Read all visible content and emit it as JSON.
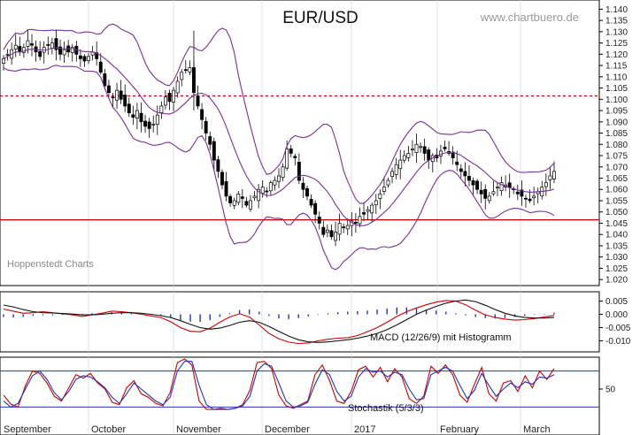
{
  "chart_data": [
    {
      "type": "candlestick",
      "title": "EUR/USD",
      "watermark": "www.chartbuero.de",
      "source_label": "Hoppenstedt Charts",
      "x_months": [
        "September",
        "October",
        "November",
        "December",
        "2017",
        "February",
        "March"
      ],
      "y_ticks": [
        "1.140",
        "1.135",
        "1.130",
        "1.125",
        "1.120",
        "1.115",
        "1.110",
        "1.105",
        "1.100",
        "1.095",
        "1.090",
        "1.085",
        "1.080",
        "1.075",
        "1.070",
        "1.065",
        "1.060",
        "1.055",
        "1.050",
        "1.045",
        "1.040",
        "1.035",
        "1.030",
        "1.025",
        "1.020"
      ],
      "ylim": [
        1.0185,
        1.1425
      ],
      "overlays": [
        "Bollinger Bands (upper)",
        "Bollinger Bands (middle)",
        "Bollinger Bands (lower)"
      ],
      "reference_lines": [
        {
          "value": 1.1015,
          "style": "dashed",
          "color": "#cc0000"
        },
        {
          "value": 1.0465,
          "style": "solid",
          "color": "#cc0000"
        }
      ],
      "close_path": [
        1.118,
        1.12,
        1.122,
        1.124,
        1.121,
        1.123,
        1.126,
        1.124,
        1.121,
        1.119,
        1.123,
        1.124,
        1.125,
        1.122,
        1.12,
        1.122,
        1.121,
        1.123,
        1.12,
        1.118,
        1.117,
        1.119,
        1.121,
        1.118,
        1.112,
        1.106,
        1.103,
        1.101,
        1.104,
        1.1,
        1.097,
        1.094,
        1.092,
        1.095,
        1.09,
        1.088,
        1.087,
        1.089,
        1.093,
        1.097,
        1.101,
        1.099,
        1.104,
        1.108,
        1.112,
        1.113,
        1.114,
        1.103,
        1.097,
        1.091,
        1.085,
        1.08,
        1.073,
        1.068,
        1.062,
        1.057,
        1.054,
        1.055,
        1.058,
        1.056,
        1.053,
        1.055,
        1.057,
        1.06,
        1.061,
        1.059,
        1.063,
        1.064,
        1.066,
        1.07,
        1.078,
        1.076,
        1.074,
        1.064,
        1.06,
        1.057,
        1.053,
        1.049,
        1.045,
        1.04,
        1.042,
        1.039,
        1.041,
        1.045,
        1.043,
        1.044,
        1.046,
        1.045,
        1.048,
        1.049,
        1.051,
        1.053,
        1.055,
        1.058,
        1.061,
        1.064,
        1.068,
        1.071,
        1.073,
        1.075,
        1.076,
        1.078,
        1.08,
        1.079,
        1.076,
        1.073,
        1.075,
        1.074,
        1.077,
        1.078,
        1.076,
        1.074,
        1.071,
        1.068,
        1.066,
        1.064,
        1.062,
        1.06,
        1.058,
        1.056,
        1.057,
        1.059,
        1.061,
        1.063,
        1.062,
        1.061,
        1.06,
        1.058,
        1.057,
        1.056,
        1.055,
        1.057,
        1.059,
        1.061,
        1.063,
        1.066,
        1.068
      ]
    },
    {
      "type": "line",
      "title": "MACD (12/26/9) mit Histogramm",
      "y_ticks": [
        "0.005",
        "0.000",
        "-0.005",
        "-0.010"
      ],
      "ylim": [
        -0.0135,
        0.0075
      ],
      "zero_line": 0.0,
      "series": [
        {
          "color": "#cc0000",
          "values": [
            0.002,
            0.0012,
            0.0004,
            0.0006,
            0.001,
            0.0006,
            0.0002,
            -0.0002,
            -0.0008,
            -0.0002,
            0.0004,
            0.0012,
            0.001,
            0.0006,
            0.0,
            -0.0006,
            -0.0012,
            -0.0028,
            -0.005,
            -0.0064,
            -0.0066,
            -0.0052,
            -0.003,
            -0.001,
            0.0002,
            -0.001,
            -0.004,
            -0.0072,
            -0.0092,
            -0.0105,
            -0.011,
            -0.0108,
            -0.01,
            -0.0094,
            -0.009,
            -0.0088,
            -0.008,
            -0.0066,
            -0.005,
            -0.003,
            -0.0008,
            0.001,
            0.0024,
            0.0036,
            0.0046,
            0.0052,
            0.005,
            0.0036,
            0.0016,
            -0.0002,
            -0.0012,
            -0.0018,
            -0.0022,
            -0.002,
            -0.0016,
            -0.001,
            -0.0004
          ]
        },
        {
          "color": "#111111",
          "values": [
            0.0035,
            0.0028,
            0.0018,
            0.001,
            0.0006,
            0.0005,
            0.0003,
            0.0001,
            -0.0002,
            -0.0002,
            0.0,
            0.0004,
            0.0006,
            0.0006,
            0.0004,
            0.0,
            -0.0005,
            -0.0012,
            -0.0024,
            -0.0038,
            -0.005,
            -0.0056,
            -0.0052,
            -0.0042,
            -0.003,
            -0.0024,
            -0.003,
            -0.0046,
            -0.0064,
            -0.0082,
            -0.0096,
            -0.0104,
            -0.0106,
            -0.0104,
            -0.01,
            -0.0096,
            -0.009,
            -0.0082,
            -0.0072,
            -0.0058,
            -0.004,
            -0.002,
            0.0,
            0.0016,
            0.003,
            0.0042,
            0.005,
            0.0054,
            0.0048,
            0.0034,
            0.0018,
            0.0004,
            -0.0006,
            -0.0012,
            -0.0014,
            -0.0014,
            -0.0012
          ]
        }
      ],
      "histogram": {
        "color": "#2233bb",
        "values": [
          -0.001,
          -0.0012,
          -0.001,
          -0.0006,
          -0.0004,
          -0.0004,
          -0.0002,
          0.0,
          0.0002,
          0.0004,
          0.0006,
          0.0008,
          0.0006,
          0.0004,
          0.0002,
          -0.0002,
          -0.0006,
          -0.0014,
          -0.0022,
          -0.0028,
          -0.0028,
          -0.0022,
          -0.001,
          0.0004,
          0.0016,
          0.0018,
          0.001,
          -0.0006,
          -0.0016,
          -0.0018,
          -0.0014,
          -0.0008,
          -0.0002,
          0.0004,
          0.0008,
          0.001,
          0.0012,
          0.0014,
          0.0018,
          0.0022,
          0.0026,
          0.0026,
          0.0022,
          0.0018,
          0.0014,
          0.001,
          0.0004,
          -0.0004,
          -0.001,
          -0.0014,
          -0.0016,
          -0.0014,
          -0.001,
          -0.0006,
          -0.0002,
          0.0002,
          0.0006
        ]
      }
    },
    {
      "type": "line",
      "title": "Stochastik (5/3/3)",
      "y_ticks": [
        "50"
      ],
      "ylim": [
        0,
        100
      ],
      "reference_lines": [
        {
          "value": 80,
          "color": "#2233bb"
        },
        {
          "value": 20,
          "color": "#2233bb"
        }
      ],
      "series": [
        {
          "color": "#cc0000",
          "values": [
            40,
            25,
            20,
            55,
            80,
            76,
            60,
            38,
            30,
            52,
            74,
            68,
            76,
            60,
            50,
            28,
            24,
            52,
            64,
            42,
            36,
            26,
            22,
            44,
            94,
            100,
            90,
            30,
            16,
            16,
            18,
            16,
            18,
            24,
            48,
            94,
            96,
            84,
            40,
            22,
            18,
            24,
            30,
            74,
            90,
            64,
            30,
            26,
            46,
            82,
            88,
            70,
            86,
            62,
            84,
            70,
            34,
            26,
            38,
            88,
            76,
            90,
            74,
            40,
            28,
            58,
            86,
            42,
            30,
            60,
            64,
            46,
            72,
            52,
            80,
            66,
            84
          ]
        },
        {
          "color": "#2233bb",
          "values": [
            30,
            20,
            26,
            50,
            72,
            80,
            66,
            44,
            32,
            46,
            66,
            72,
            70,
            62,
            52,
            36,
            26,
            42,
            60,
            50,
            40,
            30,
            24,
            36,
            80,
            96,
            96,
            56,
            24,
            16,
            16,
            16,
            18,
            22,
            38,
            80,
            92,
            88,
            60,
            30,
            20,
            22,
            28,
            58,
            82,
            74,
            46,
            30,
            38,
            70,
            84,
            78,
            80,
            70,
            78,
            74,
            50,
            32,
            34,
            74,
            80,
            86,
            80,
            56,
            34,
            48,
            76,
            56,
            38,
            50,
            60,
            52,
            62,
            58,
            70,
            68,
            74
          ]
        }
      ]
    }
  ]
}
